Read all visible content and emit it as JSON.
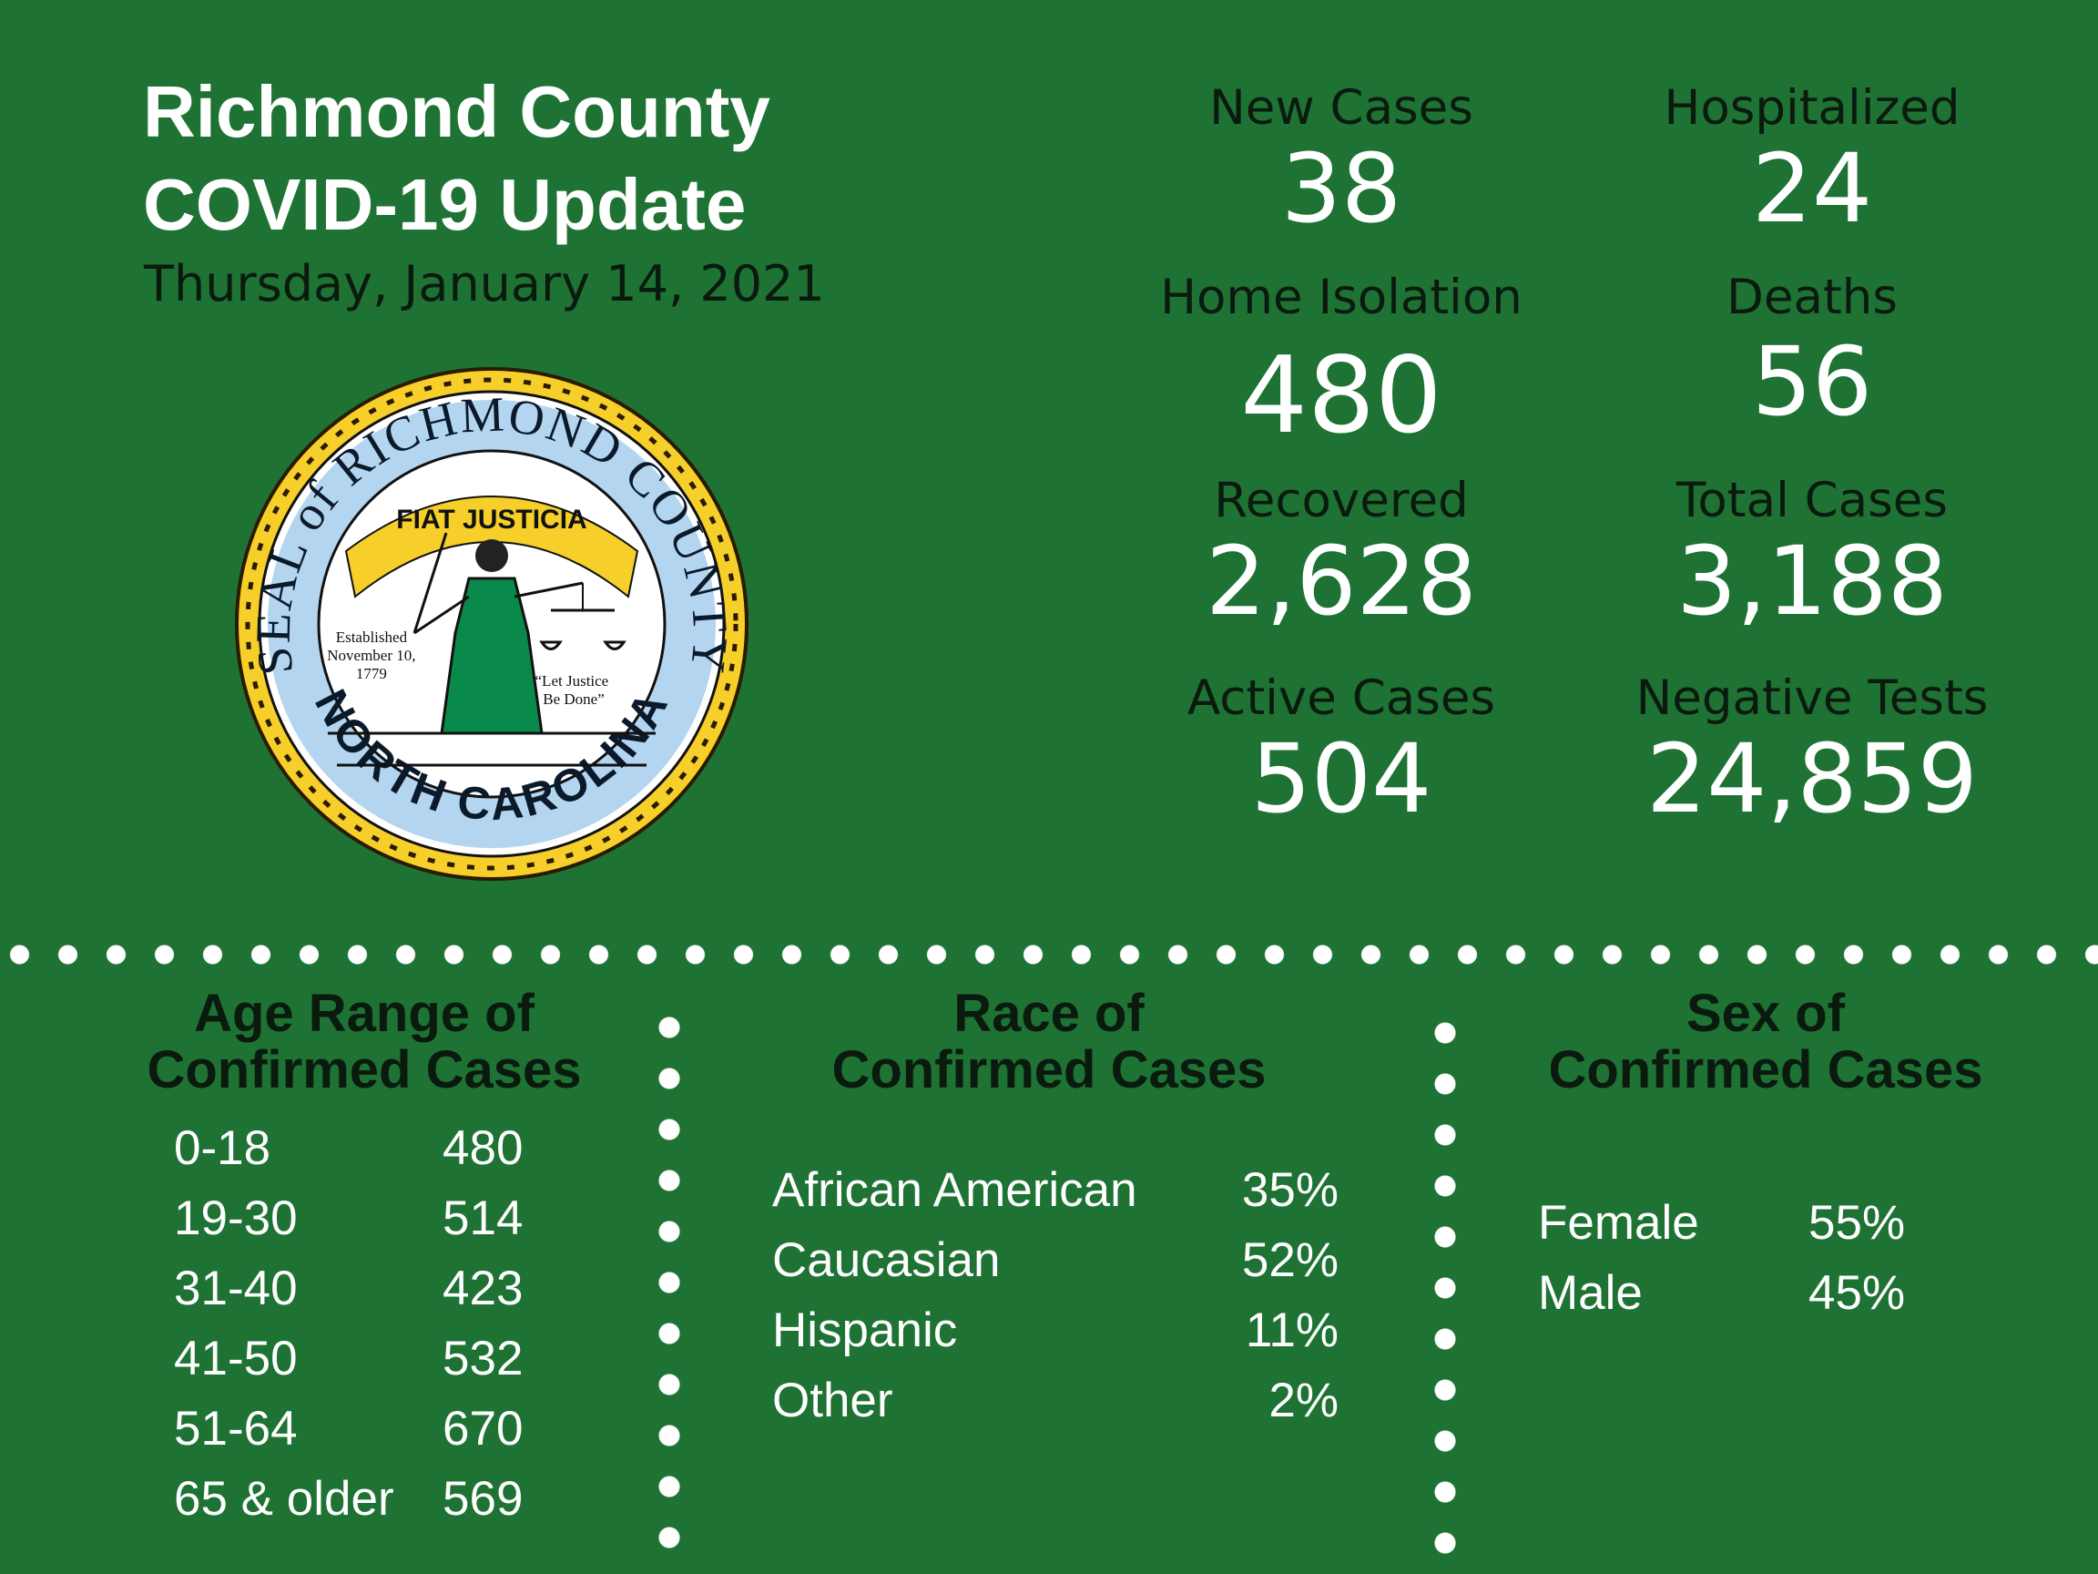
{
  "header": {
    "title_line1": "Richmond County",
    "title_line2": "COVID-19 Update",
    "date": "Thursday, January 14, 2021"
  },
  "seal": {
    "outer_text": "SEAL of RICHMOND COUNTY",
    "bottom_text": "NORTH CAROLINA",
    "banner": "FIAT JUSTICIA",
    "established": [
      "Established",
      "November 10,",
      "1779"
    ],
    "motto": [
      "“Let Justice",
      "Be Done”"
    ]
  },
  "stats": [
    {
      "label": "New Cases",
      "value": "38"
    },
    {
      "label": "Hospitalized",
      "value": "24"
    },
    {
      "label": "Home Isolation",
      "value": "480"
    },
    {
      "label": "Deaths",
      "value": "56"
    },
    {
      "label": "Recovered",
      "value": "2,628"
    },
    {
      "label": "Total Cases",
      "value": "3,188"
    },
    {
      "label": "Active Cases",
      "value": "504"
    },
    {
      "label": "Negative Tests",
      "value": "24,859"
    }
  ],
  "age": {
    "heading1": "Age Range of",
    "heading2": "Confirmed Cases",
    "rows": [
      {
        "range": "0-18",
        "count": "480"
      },
      {
        "range": "19-30",
        "count": "514"
      },
      {
        "range": "31-40",
        "count": "423"
      },
      {
        "range": "41-50",
        "count": "532"
      },
      {
        "range": "51-64",
        "count": "670"
      },
      {
        "range": "65 & older",
        "count": "569"
      }
    ]
  },
  "race": {
    "heading1": "Race of",
    "heading2": "Confirmed Cases",
    "rows": [
      {
        "name": "African American",
        "pct": "35%"
      },
      {
        "name": "Caucasian",
        "pct": "52%"
      },
      {
        "name": "Hispanic",
        "pct": "11%"
      },
      {
        "name": "Other",
        "pct": "2%"
      }
    ]
  },
  "sex": {
    "heading1": "Sex of",
    "heading2": "Confirmed Cases",
    "rows": [
      {
        "name": "Female",
        "pct": "55%"
      },
      {
        "name": "Male",
        "pct": "45%"
      }
    ]
  },
  "colors": {
    "background": "#1e7233",
    "seal_blue": "#b3d5f0",
    "seal_gold": "#f7cf2a",
    "dress_green": "#0a8a4a"
  }
}
